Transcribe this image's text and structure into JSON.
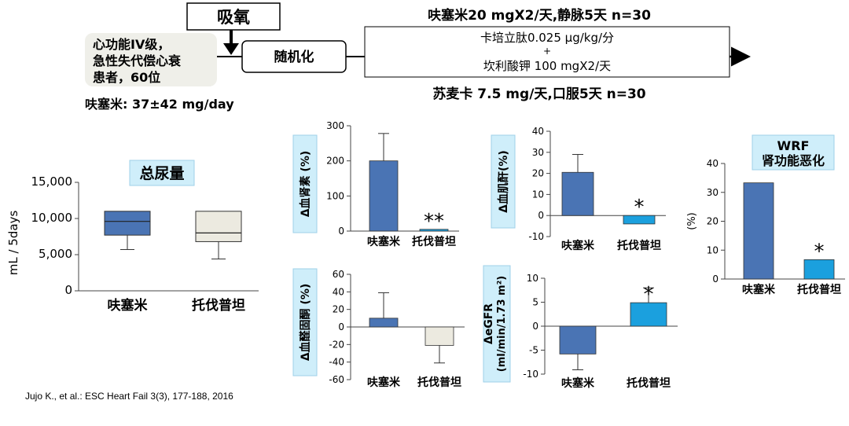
{
  "design": {
    "oxygen_label": "吸氧",
    "patients_label_lines": [
      "心功能IV级，",
      "急性失代偿心衰",
      "患者，60位"
    ],
    "random_label": "随机化",
    "furosemide_dose": "呋塞米: 37±42 mg/day",
    "furosemide_arm": "呋塞米20 mgX2/天,静脉5天 n=30",
    "infusion_line1": "卡培立肽0.025 μg/kg/分",
    "infusion_plus": "+",
    "infusion_line2": "坎利酸钾 100 mgX2/天",
    "tolvaptan_arm": "苏麦卡 7.5 mg/天,口服5天 n=30"
  },
  "colors": {
    "furosemide": "#4a74b4",
    "tolvaptan": "#1ba0de",
    "tolvaptan_box": "#eceae0",
    "label_box": "#cfeefa"
  },
  "citation": "Jujo K., et al.: ESC Heart Fail 3(3), 177-188, 2016",
  "chart_data": [
    {
      "id": "urine",
      "type": "box",
      "title": "总尿量",
      "ylabel": "mL / 5days",
      "categories": [
        "呋塞米",
        "托伐普坦"
      ],
      "yticks": [
        0,
        5000,
        10000,
        15000
      ],
      "yticklabels": [
        "0",
        "5,000",
        "10,000",
        "15,000"
      ],
      "ylim": [
        0,
        15000
      ],
      "boxes": [
        {
          "whisker_low": 5700,
          "q1": 7700,
          "median": 9600,
          "q3": 11000,
          "whisker_high": 11000
        },
        {
          "whisker_low": 4400,
          "q1": 6800,
          "median": 8000,
          "q3": 11000,
          "whisker_high": 11000
        }
      ]
    },
    {
      "id": "renin",
      "type": "bar",
      "ylabel": "Δ血肾素 (%)",
      "categories": [
        "呋塞米",
        "托伐普坦"
      ],
      "values": [
        200,
        5
      ],
      "errors": [
        78,
        0
      ],
      "yticks": [
        0,
        100,
        200,
        300
      ],
      "ylim": [
        0,
        300
      ],
      "annotations": [
        "",
        "**"
      ]
    },
    {
      "id": "creatinine",
      "type": "bar",
      "ylabel": "Δ血肌酐(%)",
      "categories": [
        "呋塞米",
        "托伐普坦"
      ],
      "values": [
        20.5,
        -4
      ],
      "errors": [
        8.5,
        0
      ],
      "yticks": [
        -10,
        0,
        10,
        20,
        30,
        40
      ],
      "ylim": [
        -10,
        40
      ],
      "annotations": [
        "",
        "*"
      ]
    },
    {
      "id": "aldosterone",
      "type": "bar",
      "ylabel": "Δ血醛固酮 (%)",
      "categories": [
        "呋塞米",
        "托伐普坦"
      ],
      "values": [
        10,
        -21
      ],
      "errors": [
        29,
        20
      ],
      "yticks": [
        -60,
        -40,
        -20,
        0,
        20,
        40,
        60
      ],
      "ylim": [
        -60,
        60
      ],
      "annotations": [
        "",
        ""
      ]
    },
    {
      "id": "egfr",
      "type": "bar",
      "ylabel": "ΔeGFR",
      "ylabel2": "(ml/min/1.73 m²)",
      "categories": [
        "呋塞米",
        "托伐普坦"
      ],
      "values": [
        -5.8,
        4.9
      ],
      "errors": [
        3.3,
        3.1
      ],
      "yticks": [
        -10,
        -5,
        0,
        5,
        10
      ],
      "ylim": [
        -10,
        10
      ],
      "annotations": [
        "",
        "*"
      ]
    },
    {
      "id": "wrf",
      "type": "bar",
      "title": "WRF",
      "subtitle": "肾功能恶化",
      "ylabel": "(%)",
      "categories": [
        "呋塞米",
        "托伐普坦"
      ],
      "values": [
        33.3,
        6.7
      ],
      "errors": [
        0,
        0
      ],
      "yticks": [
        0,
        10,
        20,
        30,
        40
      ],
      "ylim": [
        0,
        40
      ],
      "annotations": [
        "",
        "*"
      ]
    }
  ]
}
